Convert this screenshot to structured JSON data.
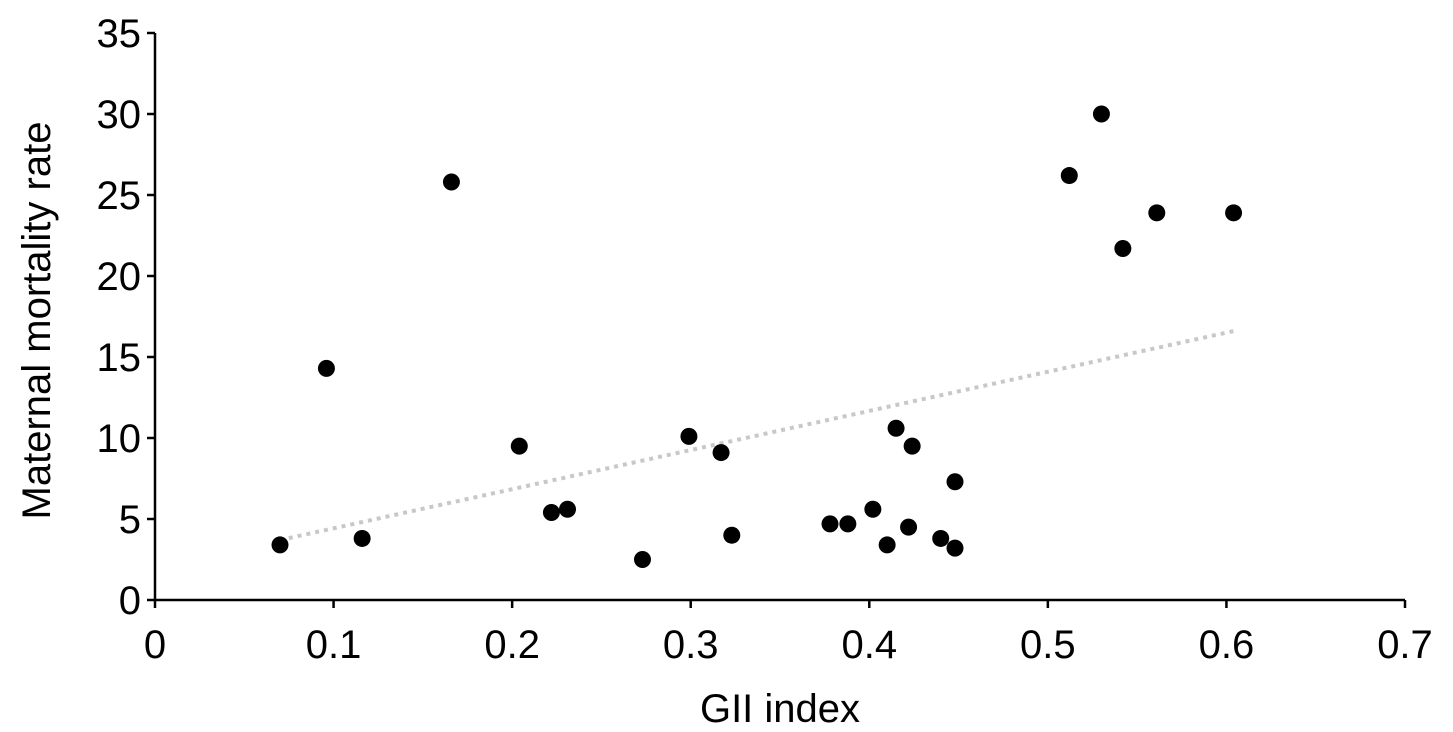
{
  "chart_data": {
    "type": "scatter",
    "title": "",
    "xlabel": "GII index",
    "ylabel": "Maternal mortality rate",
    "xlim": [
      0,
      0.7
    ],
    "ylim": [
      0,
      35
    ],
    "x_ticks": [
      "0",
      "0.1",
      "0.2",
      "0.3",
      "0.4",
      "0.5",
      "0.6",
      "0.7"
    ],
    "y_ticks": [
      "0",
      "5",
      "10",
      "15",
      "20",
      "25",
      "30",
      "35"
    ],
    "x_tick_values": [
      0,
      0.1,
      0.2,
      0.3,
      0.4,
      0.5,
      0.6,
      0.7
    ],
    "y_tick_values": [
      0,
      5,
      10,
      15,
      20,
      25,
      30,
      35
    ],
    "grid": false,
    "legend": "none",
    "points": [
      {
        "x": 0.07,
        "y": 3.4
      },
      {
        "x": 0.096,
        "y": 14.3
      },
      {
        "x": 0.116,
        "y": 3.8
      },
      {
        "x": 0.166,
        "y": 25.8
      },
      {
        "x": 0.204,
        "y": 9.5
      },
      {
        "x": 0.222,
        "y": 5.4
      },
      {
        "x": 0.231,
        "y": 5.6
      },
      {
        "x": 0.273,
        "y": 2.5
      },
      {
        "x": 0.299,
        "y": 10.1
      },
      {
        "x": 0.317,
        "y": 9.1
      },
      {
        "x": 0.323,
        "y": 4.0
      },
      {
        "x": 0.378,
        "y": 4.7
      },
      {
        "x": 0.388,
        "y": 4.7
      },
      {
        "x": 0.402,
        "y": 5.6
      },
      {
        "x": 0.41,
        "y": 3.4
      },
      {
        "x": 0.415,
        "y": 10.6
      },
      {
        "x": 0.422,
        "y": 4.5
      },
      {
        "x": 0.424,
        "y": 9.5
      },
      {
        "x": 0.44,
        "y": 3.8
      },
      {
        "x": 0.448,
        "y": 3.2
      },
      {
        "x": 0.448,
        "y": 7.3
      },
      {
        "x": 0.512,
        "y": 26.2
      },
      {
        "x": 0.53,
        "y": 30.0
      },
      {
        "x": 0.542,
        "y": 21.7
      },
      {
        "x": 0.561,
        "y": 23.9
      },
      {
        "x": 0.604,
        "y": 23.9
      }
    ],
    "trendline": {
      "style": "dotted",
      "x": [
        0.07,
        0.604
      ],
      "y": [
        3.7,
        16.6
      ]
    },
    "colors": {
      "points": "#000000",
      "trendline": "#c8c8c8",
      "axes": "#000000"
    }
  }
}
